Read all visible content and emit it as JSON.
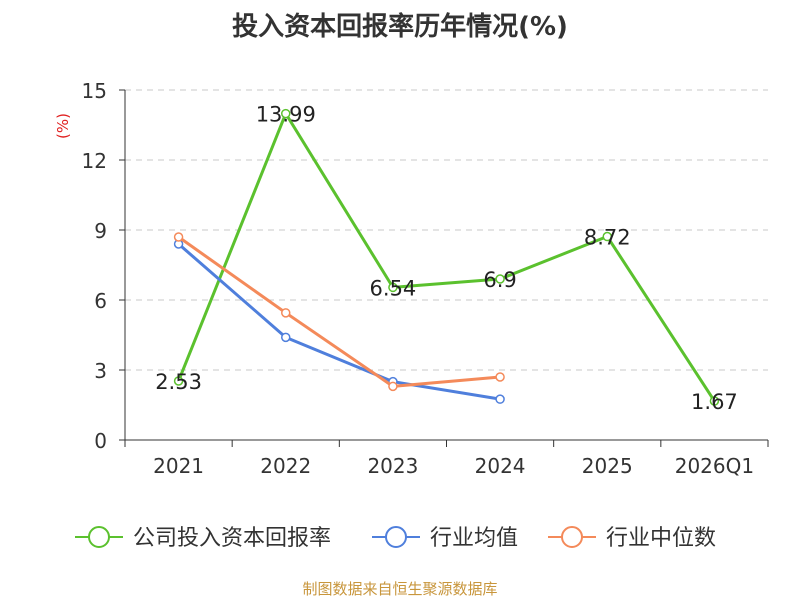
{
  "chart_data": {
    "type": "line",
    "title": "投入资本回报率历年情况(%)",
    "ylabel": "(%)",
    "xlabel": "",
    "categories": [
      "2021",
      "2022",
      "2023",
      "2024",
      "2025",
      "2026Q1"
    ],
    "yticks": [
      0,
      3,
      6,
      9,
      12,
      15
    ],
    "ylim": [
      0,
      15
    ],
    "grid": true,
    "legend_position": "bottom",
    "series": [
      {
        "name": "公司投入资本回报率",
        "color": "#5bc12e",
        "values": [
          2.53,
          13.99,
          6.54,
          6.9,
          8.72,
          1.67
        ],
        "labels": [
          "2.53",
          "13.99",
          "6.54",
          "6.9",
          "8.72",
          "1.67"
        ]
      },
      {
        "name": "行业均值",
        "color": "#4f7fdc",
        "values": [
          8.4,
          4.4,
          2.5,
          1.75,
          null,
          null
        ]
      },
      {
        "name": "行业中位数",
        "color": "#f48a5a",
        "values": [
          8.7,
          5.45,
          2.3,
          2.7,
          null,
          null
        ]
      }
    ]
  },
  "source": "制图数据来自恒生聚源数据库"
}
